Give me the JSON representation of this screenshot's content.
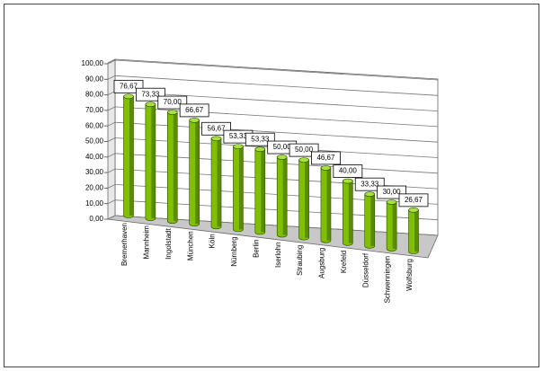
{
  "chart_data": {
    "type": "bar",
    "categories": [
      "Bremerhaven",
      "Mannheim",
      "Ingolstadt",
      "München",
      "Köln",
      "Nürnberg",
      "Berlin",
      "Iserlohn",
      "Straubing",
      "Augsburg",
      "Krefeld",
      "Düsseldorf",
      "Schwenningen",
      "Wolfsburg"
    ],
    "values": [
      76.67,
      73.33,
      70.0,
      66.67,
      56.67,
      53.33,
      53.33,
      50.0,
      50.0,
      46.67,
      40.0,
      33.33,
      30.0,
      26.67
    ],
    "value_labels": [
      "76,67",
      "73,33",
      "70,00",
      "66,67",
      "56,67",
      "53,33",
      "53,33",
      "50,00",
      "50,00",
      "46,67",
      "40,00",
      "33,33",
      "30,00",
      "26,67"
    ],
    "color": "#80c000",
    "ylim": [
      0,
      100
    ],
    "yticks": [
      {
        "value": 0,
        "label": "0,00"
      },
      {
        "value": 10,
        "label": "10,00"
      },
      {
        "value": 20,
        "label": "20,00"
      },
      {
        "value": 30,
        "label": "30,00"
      },
      {
        "value": 40,
        "label": "40,00"
      },
      {
        "value": 50,
        "label": "50,00"
      },
      {
        "value": 60,
        "label": "60,00"
      },
      {
        "value": 70,
        "label": "70,00"
      },
      {
        "value": 80,
        "label": "80,00"
      },
      {
        "value": 90,
        "label": "90,00"
      },
      {
        "value": 100,
        "label": "100,00"
      }
    ],
    "grid": true
  }
}
